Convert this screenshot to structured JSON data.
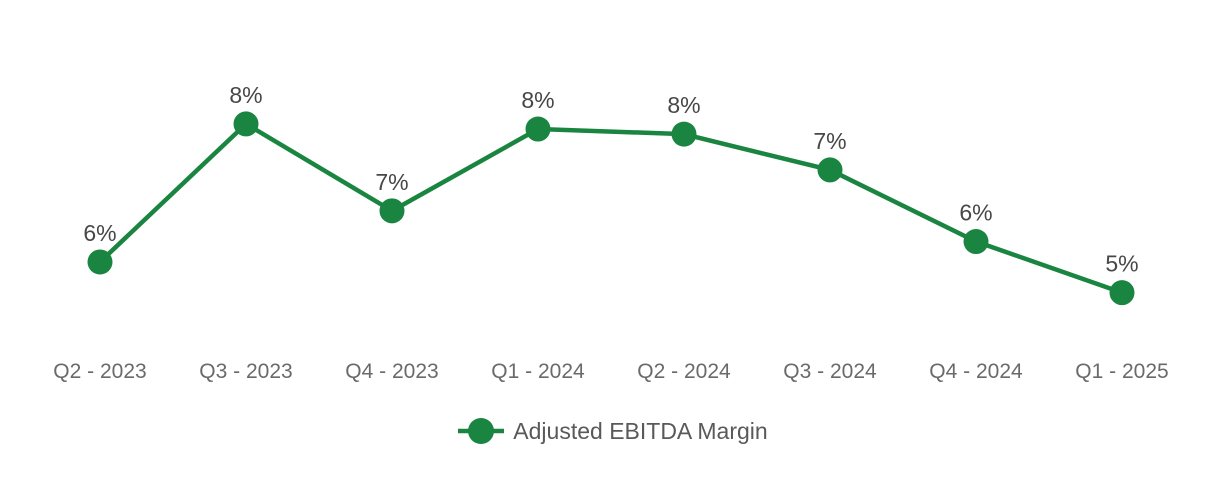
{
  "chart_data": {
    "type": "line",
    "title": "",
    "xlabel": "",
    "ylabel": "",
    "categories": [
      "Q2 - 2023",
      "Q3 - 2023",
      "Q4 - 2023",
      "Q1 - 2024",
      "Q2 - 2024",
      "Q3 - 2024",
      "Q4 - 2024",
      "Q1 - 2025"
    ],
    "series": [
      {
        "name": "Adjusted EBITDA Margin",
        "values": [
          6,
          8,
          7,
          8,
          8,
          7,
          6,
          5
        ],
        "data_labels": [
          "6%",
          "8%",
          "7%",
          "8%",
          "8%",
          "7%",
          "6%",
          "5%"
        ],
        "values_plotted_est": [
          5.7,
          8.4,
          6.7,
          8.3,
          8.2,
          7.5,
          6.1,
          5.1
        ],
        "color": "#1A8540",
        "marker": "circle"
      }
    ],
    "ylim": [
      4.8,
      9.2
    ],
    "grid": false,
    "y_axis_visible": false,
    "data_labels_visible": true,
    "legend_position": "bottom"
  },
  "colors": {
    "line": "#1A8540",
    "marker": "#1A8540",
    "data_label": "#474747",
    "axis_label": "#6A6A6A",
    "legend_text": "#595959",
    "background": "#FFFFFF"
  }
}
